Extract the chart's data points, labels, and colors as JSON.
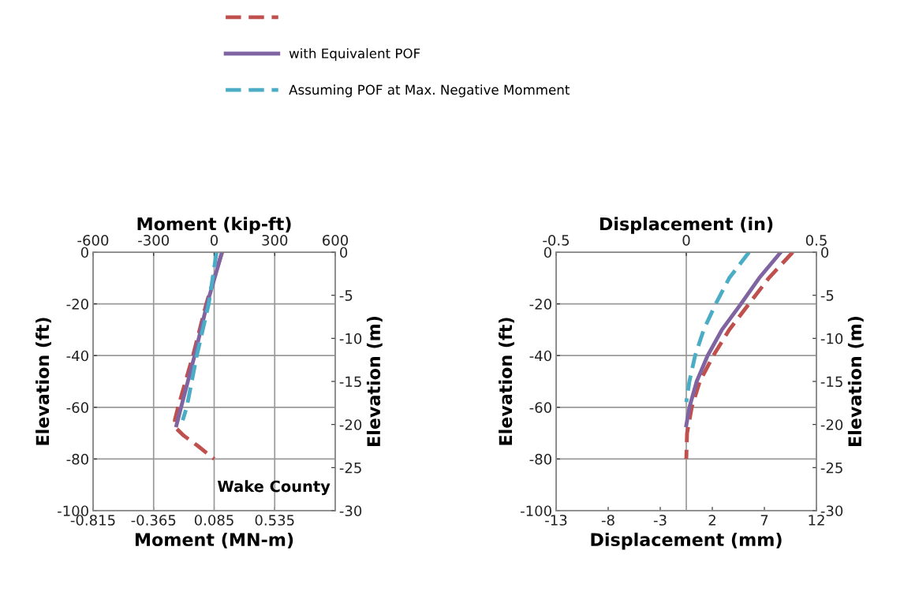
{
  "chart_data": [
    {
      "type": "line",
      "xlabel": "Moment (MN-m)",
      "x2label": "Moment (kip-ft)",
      "ylabel": "Elevation (ft)",
      "y2label": "Elevation (m)",
      "xlim": [
        -0.815,
        0.985
      ],
      "xticks": [
        -0.815,
        -0.365,
        0.085,
        0.535
      ],
      "x2lim": [
        -600,
        600
      ],
      "x2ticks": [
        -600,
        -300,
        0,
        300,
        600
      ],
      "ylim": [
        -100,
        0
      ],
      "yticks": [
        -100,
        -80,
        -60,
        -40,
        -20,
        0
      ],
      "y2lim": [
        -30,
        0
      ],
      "y2ticks": [
        -30,
        -25,
        -20,
        -15,
        -10,
        -5,
        0
      ],
      "grid": true,
      "legend": "top",
      "annotations": [
        "Wake County"
      ],
      "series": [
        {
          "color": "#c0504d",
          "line_style": "dashed",
          "axis": "x2",
          "x": [
            39,
            -39,
            -105,
            -179,
            -195,
            -190,
            -150,
            -80,
            0
          ],
          "values": [
            0,
            -20,
            -40,
            -60,
            -65,
            -68,
            -71,
            -75,
            -80
          ]
        },
        {
          "name": "with Equivalent POF",
          "color": "#8064a2",
          "line_style": "solid",
          "axis": "x2",
          "x": [
            39,
            -35,
            -97,
            -164,
            -187
          ],
          "values": [
            0,
            -20,
            -40,
            -60,
            -67
          ]
        },
        {
          "name": "Assuming POF at Max. Negative Momment",
          "color": "#4bacc6",
          "line_style": "dashed",
          "axis": "x2",
          "x": [
            12,
            -27,
            -86,
            -136,
            -156
          ],
          "values": [
            0,
            -20,
            -40,
            -60,
            -65
          ]
        }
      ]
    },
    {
      "type": "line",
      "xlabel": "Displacement (mm)",
      "x2label": "Displacement (in)",
      "ylabel": "Elevation (ft)",
      "y2label": "Elevation (m)",
      "xlim": [
        -13,
        12
      ],
      "xticks": [
        -13,
        -8,
        -3,
        2,
        7,
        12
      ],
      "x2lim": [
        -0.5,
        0.5
      ],
      "x2ticks": [
        -0.5,
        0,
        0.5
      ],
      "ylim": [
        -100,
        0
      ],
      "yticks": [
        -100,
        -80,
        -60,
        -40,
        -20,
        0
      ],
      "y2lim": [
        -30,
        0
      ],
      "y2ticks": [
        -30,
        -25,
        -20,
        -15,
        -10,
        -5,
        0
      ],
      "grid": true,
      "legend": false,
      "series": [
        {
          "color": "#c0504d",
          "line_style": "dashed",
          "axis": "x2",
          "x": [
            0.409,
            0.317,
            0.241,
            0.165,
            0.104,
            0.052,
            0.021,
            0.003,
            0
          ],
          "values": [
            0,
            -10,
            -20,
            -30,
            -40,
            -50,
            -60,
            -70,
            -80
          ]
        },
        {
          "color": "#8064a2",
          "line_style": "solid",
          "axis": "x2",
          "x": [
            0.363,
            0.28,
            0.21,
            0.137,
            0.082,
            0.04,
            0.012,
            0
          ],
          "values": [
            0,
            -10,
            -20,
            -30,
            -40,
            -50,
            -60,
            -67
          ]
        },
        {
          "color": "#4bacc6",
          "line_style": "dashed",
          "axis": "x2",
          "x": [
            0.241,
            0.165,
            0.113,
            0.067,
            0.034,
            0.012,
            0
          ],
          "values": [
            0,
            -10,
            -20,
            -30,
            -40,
            -50,
            -58
          ]
        }
      ]
    }
  ]
}
